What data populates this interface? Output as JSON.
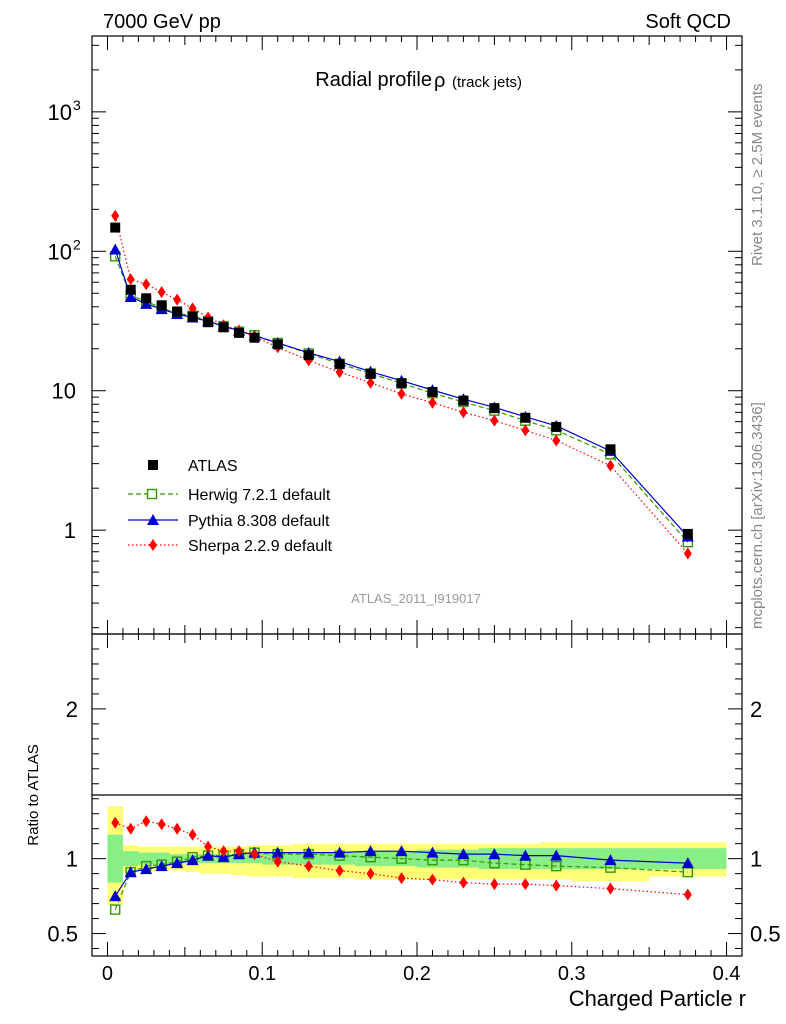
{
  "header": {
    "energy_label": "7000 GeV pp",
    "process_label": "Soft QCD"
  },
  "side_notes": {
    "rivet": "Rivet 3.1.10, ≥ 2.5M events",
    "source": "mcplots.cern.ch [arXiv:1306.3436]"
  },
  "chart_data": [
    {
      "type": "line",
      "title": "Radial profile",
      "title_symbol": "ρ",
      "title_suffix": "(track jets)",
      "watermark": "ATLAS_2011_I919017",
      "ylabel": "",
      "yscale": "log",
      "ylim": [
        0.18,
        3500
      ],
      "xlim": [
        -0.01,
        0.41
      ],
      "y_ticks": [
        {
          "value": 1000,
          "label": "10",
          "exp": "3"
        },
        {
          "value": 100,
          "label": "10",
          "exp": "2"
        },
        {
          "value": 10,
          "label": "10",
          "exp": ""
        },
        {
          "value": 1,
          "label": "1",
          "exp": ""
        }
      ],
      "x": [
        0.005,
        0.015,
        0.025,
        0.035,
        0.045,
        0.055,
        0.065,
        0.075,
        0.085,
        0.095,
        0.11,
        0.13,
        0.15,
        0.17,
        0.19,
        0.21,
        0.23,
        0.25,
        0.27,
        0.29,
        0.325,
        0.375
      ],
      "legend_position": "middle-left",
      "series": [
        {
          "name": "ATLAS",
          "color": "#000000",
          "style": "data",
          "marker": "square",
          "values": [
            148,
            53,
            46,
            41,
            37,
            34,
            31,
            28.5,
            26,
            24,
            21.5,
            18,
            15.5,
            13.2,
            11.3,
            9.8,
            8.5,
            7.5,
            6.4,
            5.5,
            3.8,
            0.94
          ]
        },
        {
          "name": "Herwig 7.2.1 default",
          "color": "#339900",
          "style": "dashed",
          "marker": "open-square",
          "values": [
            92,
            48,
            44,
            39,
            36,
            34.5,
            31.5,
            29,
            26.5,
            25,
            22,
            18.5,
            15.6,
            13.3,
            11.3,
            9.6,
            8.3,
            7.2,
            6.1,
            5.2,
            3.5,
            0.82
          ]
        },
        {
          "name": "Pythia 8.308 default",
          "color": "#0000cc",
          "style": "solid",
          "marker": "triangle",
          "values": [
            103,
            47,
            42,
            38.5,
            35.5,
            33.5,
            31.5,
            29,
            27,
            24.8,
            22,
            18.7,
            16.2,
            13.7,
            11.8,
            10.1,
            8.7,
            7.6,
            6.5,
            5.6,
            3.7,
            0.9
          ]
        },
        {
          "name": "Sherpa 2.2.9 default",
          "color": "#ff0000",
          "style": "dotted",
          "marker": "diamond",
          "values": [
            180,
            63,
            58,
            51,
            45,
            39,
            33.5,
            29.5,
            27,
            24.5,
            20.5,
            16.5,
            13.6,
            11.4,
            9.5,
            8.2,
            7,
            6.1,
            5.2,
            4.4,
            2.9,
            0.68
          ]
        }
      ]
    },
    {
      "type": "line",
      "ylabel": "Ratio to ATLAS",
      "xlabel": "Charged Particle r",
      "ylim": [
        0.35,
        2.5
      ],
      "xlim": [
        -0.01,
        0.41
      ],
      "y_ticks": [
        {
          "value": 2,
          "label": "2"
        },
        {
          "value": 1,
          "label": "1"
        },
        {
          "value": 0.5,
          "label": "0.5"
        }
      ],
      "x_ticks": [
        {
          "value": 0,
          "label": "0"
        },
        {
          "value": 0.1,
          "label": "0.1"
        },
        {
          "value": 0.2,
          "label": "0.2"
        },
        {
          "value": 0.3,
          "label": "0.3"
        },
        {
          "value": 0.4,
          "label": "0.4"
        }
      ],
      "band_edges": [
        0,
        0.01,
        0.02,
        0.03,
        0.04,
        0.05,
        0.06,
        0.07,
        0.08,
        0.09,
        0.1,
        0.12,
        0.14,
        0.16,
        0.18,
        0.2,
        0.22,
        0.24,
        0.26,
        0.28,
        0.3,
        0.35,
        0.4
      ],
      "stat_band": {
        "color": "#88ee88",
        "lower": [
          0.84,
          0.95,
          0.96,
          0.96,
          0.97,
          0.97,
          0.97,
          0.97,
          0.97,
          0.97,
          0.96,
          0.96,
          0.96,
          0.95,
          0.95,
          0.94,
          0.94,
          0.93,
          0.93,
          0.93,
          0.93,
          0.93
        ],
        "upper": [
          1.16,
          1.05,
          1.04,
          1.04,
          1.03,
          1.03,
          1.03,
          1.03,
          1.03,
          1.03,
          1.04,
          1.04,
          1.04,
          1.05,
          1.05,
          1.06,
          1.06,
          1.07,
          1.07,
          1.07,
          1.07,
          1.07
        ]
      },
      "syst_band": {
        "color": "#ffff77",
        "lower": [
          0.69,
          0.91,
          0.92,
          0.92,
          0.92,
          0.91,
          0.9,
          0.9,
          0.89,
          0.88,
          0.88,
          0.87,
          0.87,
          0.86,
          0.86,
          0.86,
          0.86,
          0.86,
          0.86,
          0.86,
          0.85,
          0.88
        ],
        "upper": [
          1.35,
          1.09,
          1.08,
          1.08,
          1.08,
          1.08,
          1.08,
          1.08,
          1.08,
          1.09,
          1.09,
          1.1,
          1.1,
          1.1,
          1.1,
          1.1,
          1.1,
          1.1,
          1.1,
          1.11,
          1.11,
          1.11
        ]
      },
      "series": [
        {
          "name": "Herwig 7.2.1 default",
          "color": "#339900",
          "style": "dashed",
          "marker": "open-square",
          "values": [
            0.66,
            0.91,
            0.95,
            0.96,
            0.98,
            1.01,
            1.02,
            1.02,
            1.03,
            1.04,
            1.03,
            1.03,
            1.02,
            1.01,
            1.0,
            0.99,
            0.99,
            0.97,
            0.96,
            0.95,
            0.94,
            0.91
          ]
        },
        {
          "name": "Pythia 8.308 default",
          "color": "#0000cc",
          "style": "solid",
          "marker": "triangle",
          "values": [
            0.75,
            0.91,
            0.93,
            0.95,
            0.97,
            0.99,
            1.02,
            1.01,
            1.03,
            1.04,
            1.04,
            1.04,
            1.04,
            1.05,
            1.05,
            1.04,
            1.03,
            1.03,
            1.02,
            1.02,
            0.99,
            0.97
          ]
        },
        {
          "name": "Sherpa 2.2.9 default",
          "color": "#ff0000",
          "style": "dotted",
          "marker": "diamond",
          "values": [
            1.24,
            1.2,
            1.25,
            1.23,
            1.2,
            1.16,
            1.08,
            1.05,
            1.05,
            1.03,
            0.98,
            0.95,
            0.92,
            0.9,
            0.87,
            0.86,
            0.84,
            0.83,
            0.83,
            0.82,
            0.8,
            0.76
          ]
        }
      ]
    }
  ]
}
